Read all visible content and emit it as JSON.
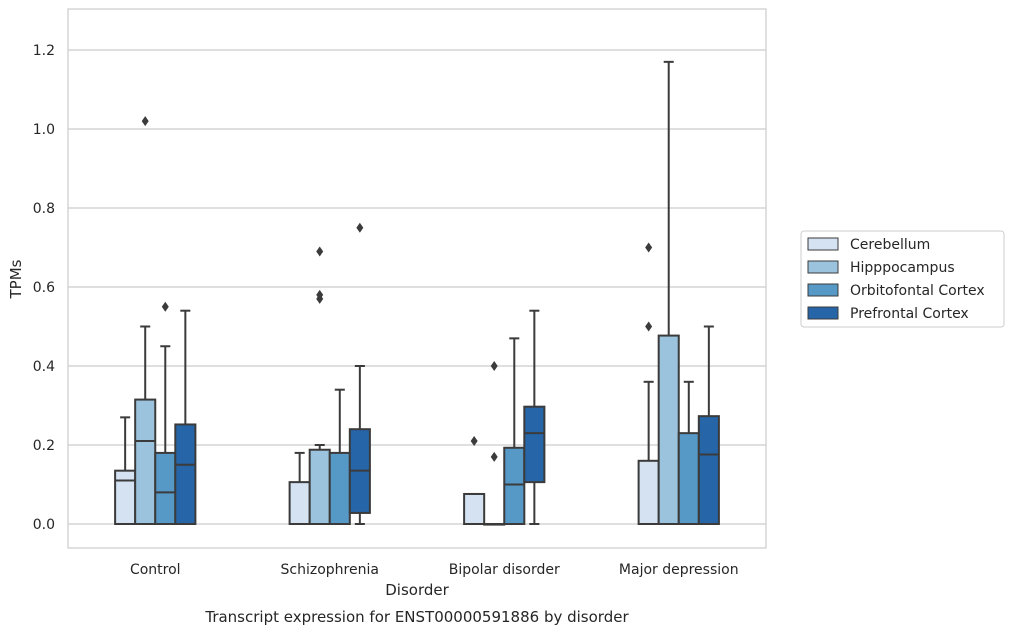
{
  "chart_data": {
    "type": "boxplot",
    "title": "Transcript expression for ENST00000591886 by disorder",
    "xlabel": "Disorder",
    "ylabel": "TPMs",
    "ylim": [
      -0.06,
      1.3
    ],
    "yticks": [
      "0.0",
      "0.2",
      "0.4",
      "0.6",
      "0.8",
      "1.0",
      "1.2"
    ],
    "grid": "horizontal",
    "legend_position": "right",
    "categories": [
      "Control",
      "Schizophrenia",
      "Bipolar disorder",
      "Major depression"
    ],
    "series": [
      {
        "name": "Cerebellum",
        "color": "#d4e2f2",
        "boxes": [
          {
            "whislo": 0.0,
            "q1": 0.0,
            "med": 0.11,
            "q3": 0.135,
            "whishi": 0.27,
            "fliers": []
          },
          {
            "whislo": 0.0,
            "q1": 0.0,
            "med": 0.0,
            "q3": 0.106,
            "whishi": 0.18,
            "fliers": []
          },
          {
            "whislo": 0.0,
            "q1": 0.0,
            "med": 0.0,
            "q3": 0.076,
            "whishi": 0.076,
            "fliers": [
              0.21
            ]
          },
          {
            "whislo": 0.0,
            "q1": 0.0,
            "med": 0.0,
            "q3": 0.16,
            "whishi": 0.36,
            "fliers": [
              0.5,
              0.7
            ]
          }
        ]
      },
      {
        "name": "Hipppocampus",
        "color": "#9bc3dd",
        "boxes": [
          {
            "whislo": 0.0,
            "q1": 0.0,
            "med": 0.21,
            "q3": 0.315,
            "whishi": 0.5,
            "fliers": [
              1.02
            ]
          },
          {
            "whislo": 0.0,
            "q1": 0.0,
            "med": 0.0,
            "q3": 0.188,
            "whishi": 0.2,
            "fliers": [
              0.57,
              0.58,
              0.69
            ]
          },
          {
            "whislo": 0.0,
            "q1": 0.0,
            "med": 0.0,
            "q3": 0.0,
            "whishi": 0.0,
            "fliers": [
              0.17,
              0.4
            ]
          },
          {
            "whislo": 0.0,
            "q1": 0.0,
            "med": 0.0,
            "q3": 0.477,
            "whishi": 1.17,
            "fliers": []
          }
        ]
      },
      {
        "name": "Orbitofontal Cortex",
        "color": "#5698c6",
        "boxes": [
          {
            "whislo": 0.0,
            "q1": 0.0,
            "med": 0.08,
            "q3": 0.18,
            "whishi": 0.45,
            "fliers": [
              0.55
            ]
          },
          {
            "whislo": 0.0,
            "q1": 0.0,
            "med": 0.0,
            "q3": 0.18,
            "whishi": 0.34,
            "fliers": []
          },
          {
            "whislo": 0.0,
            "q1": 0.0,
            "med": 0.1,
            "q3": 0.193,
            "whishi": 0.47,
            "fliers": []
          },
          {
            "whislo": 0.0,
            "q1": 0.0,
            "med": 0.0,
            "q3": 0.23,
            "whishi": 0.36,
            "fliers": []
          }
        ]
      },
      {
        "name": "Prefrontal Cortex",
        "color": "#2565a8",
        "boxes": [
          {
            "whislo": 0.0,
            "q1": 0.0,
            "med": 0.15,
            "q3": 0.252,
            "whishi": 0.54,
            "fliers": []
          },
          {
            "whislo": 0.0,
            "q1": 0.028,
            "med": 0.135,
            "q3": 0.24,
            "whishi": 0.4,
            "fliers": [
              0.75
            ]
          },
          {
            "whislo": 0.0,
            "q1": 0.106,
            "med": 0.23,
            "q3": 0.297,
            "whishi": 0.54,
            "fliers": []
          },
          {
            "whislo": 0.0,
            "q1": 0.0,
            "med": 0.176,
            "q3": 0.273,
            "whishi": 0.5,
            "fliers": []
          }
        ]
      }
    ]
  }
}
